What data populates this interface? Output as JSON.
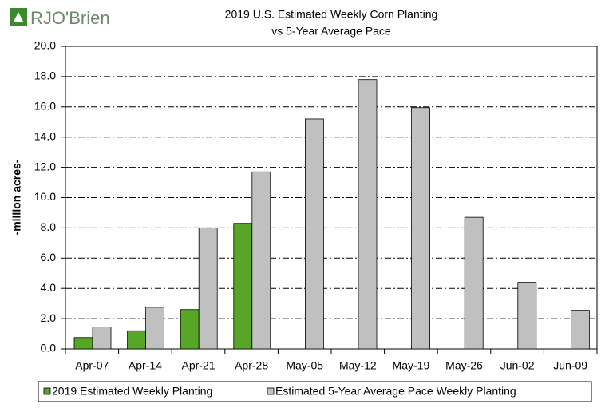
{
  "logo": "RJO'Brien",
  "chart_data": {
    "type": "bar",
    "title": "2019 U.S. Estimated Weekly Corn Planting",
    "subtitle": "vs 5-Year Average Pace",
    "y_label": "-million acres-",
    "categories": [
      "Apr-07",
      "Apr-14",
      "Apr-21",
      "Apr-28",
      "May-05",
      "May-12",
      "May-19",
      "May-26",
      "Jun-02",
      "Jun-09"
    ],
    "series": [
      {
        "name": "2019 Estimated Weekly Planting",
        "color": "#58a628",
        "values": [
          0.75,
          1.2,
          2.6,
          8.3,
          null,
          null,
          null,
          null,
          null,
          null
        ]
      },
      {
        "name": "Estimated 5-Year Average Pace Weekly Planting",
        "color": "#c0c0c0",
        "values": [
          1.45,
          2.75,
          8.0,
          11.7,
          15.2,
          17.8,
          15.95,
          8.7,
          4.4,
          2.55
        ]
      }
    ],
    "ylim": [
      0,
      20
    ],
    "yticks": [
      {
        "value": 0,
        "label": "0.0"
      },
      {
        "value": 2,
        "label": "2.0"
      },
      {
        "value": 4,
        "label": "4.0"
      },
      {
        "value": 6,
        "label": "6.0"
      },
      {
        "value": 8,
        "label": "8.0"
      },
      {
        "value": 10,
        "label": "10.0"
      },
      {
        "value": 12,
        "label": "12.0"
      },
      {
        "value": 14,
        "label": "14.0"
      },
      {
        "value": 16,
        "label": "16.0"
      },
      {
        "value": 18,
        "label": "18.0"
      },
      {
        "value": 20,
        "label": "20.0"
      }
    ],
    "grid": true,
    "legend": "bottom"
  }
}
